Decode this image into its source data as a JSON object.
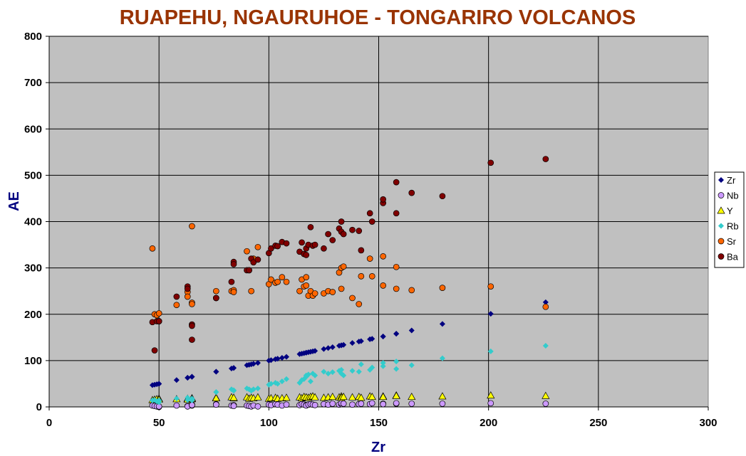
{
  "chart_data": {
    "type": "scatter",
    "title": "RUAPEHU, NGAURUHOE - TONGARIRO VOLCANOS",
    "xlabel": "Zr",
    "ylabel": "AE",
    "xlim": [
      0,
      300
    ],
    "ylim": [
      0,
      800
    ],
    "x_ticks": [
      0,
      50,
      100,
      150,
      200,
      250,
      300
    ],
    "y_ticks": [
      0,
      100,
      200,
      300,
      400,
      500,
      600,
      700,
      800
    ],
    "grid": true,
    "legend_position": "right",
    "plot_background": "#c0c0c0",
    "title_color": "#993300",
    "axis_title_color": "#000080",
    "x": [
      47,
      48,
      49,
      50,
      50,
      58,
      63,
      63,
      65,
      65,
      65,
      76,
      76,
      83,
      84,
      84,
      90,
      91,
      92,
      93,
      95,
      100,
      101,
      103,
      104,
      106,
      108,
      114,
      115,
      116,
      117,
      117,
      118,
      119,
      120,
      121,
      125,
      127,
      129,
      132,
      133,
      133,
      134,
      138,
      141,
      142,
      146,
      147,
      152,
      152,
      158,
      158,
      165,
      179,
      201,
      226
    ],
    "series": [
      {
        "name": "Zr",
        "color": "#000080",
        "marker": "diamond",
        "values": [
          47,
          48,
          49,
          50,
          50,
          58,
          63,
          63,
          65,
          65,
          65,
          76,
          76,
          83,
          84,
          84,
          90,
          91,
          92,
          93,
          95,
          100,
          101,
          103,
          104,
          106,
          108,
          114,
          115,
          116,
          117,
          117,
          118,
          119,
          120,
          121,
          125,
          127,
          129,
          132,
          133,
          133,
          134,
          138,
          141,
          142,
          146,
          147,
          152,
          152,
          158,
          158,
          165,
          179,
          201,
          226
        ]
      },
      {
        "name": "Nb",
        "color": "#cc99ff",
        "marker": "circle",
        "values": [
          3,
          2,
          1,
          0,
          1,
          3,
          2,
          1,
          3,
          5,
          4,
          6,
          5,
          3,
          4,
          2,
          3,
          2,
          1,
          3,
          1,
          5,
          4,
          6,
          5,
          3,
          5,
          4,
          6,
          5,
          4,
          3,
          5,
          6,
          5,
          4,
          6,
          5,
          7,
          5,
          6,
          8,
          7,
          5,
          6,
          7,
          6,
          8,
          7,
          6,
          7,
          8,
          7,
          7,
          8,
          7
        ]
      },
      {
        "name": "Y",
        "color": "#ffff00",
        "marker": "triangle",
        "values": [
          15,
          16,
          17,
          18,
          16,
          17,
          18,
          16,
          17,
          19,
          18,
          20,
          19,
          21,
          19,
          20,
          21,
          18,
          20,
          19,
          21,
          18,
          19,
          20,
          18,
          19,
          20,
          21,
          19,
          22,
          20,
          21,
          20,
          22,
          23,
          21,
          20,
          21,
          22,
          21,
          23,
          20,
          22,
          21,
          22,
          20,
          23,
          22,
          23,
          22,
          25,
          24,
          22,
          23,
          25,
          24
        ]
      },
      {
        "name": "Rb",
        "color": "#33cccc",
        "marker": "diamond",
        "values": [
          14,
          15,
          12,
          10,
          14,
          18,
          20,
          15,
          18,
          14,
          16,
          32,
          32,
          38,
          35,
          36,
          40,
          38,
          35,
          38,
          40,
          48,
          50,
          52,
          50,
          55,
          60,
          52,
          58,
          60,
          65,
          68,
          70,
          55,
          72,
          68,
          76,
          72,
          75,
          78,
          80,
          72,
          68,
          78,
          76,
          92,
          80,
          85,
          95,
          88,
          98,
          82,
          90,
          105,
          120,
          132
        ]
      },
      {
        "name": "Sr",
        "color": "#ff6600",
        "marker": "circle",
        "values": [
          342,
          200,
          198,
          202,
          185,
          220,
          248,
          238,
          225,
          390,
          222,
          250,
          235,
          250,
          252,
          248,
          336,
          295,
          250,
          320,
          345,
          265,
          275,
          268,
          270,
          280,
          270,
          250,
          275,
          260,
          280,
          262,
          240,
          250,
          240,
          245,
          245,
          250,
          248,
          290,
          300,
          255,
          303,
          235,
          222,
          282,
          320,
          282,
          325,
          262,
          302,
          255,
          252,
          257,
          260,
          216
        ]
      },
      {
        "name": "Ba",
        "color": "#800000",
        "marker": "circle",
        "values": [
          183,
          122,
          185,
          185,
          185,
          238,
          260,
          255,
          178,
          145,
          175,
          235,
          235,
          270,
          313,
          308,
          295,
          295,
          320,
          312,
          318,
          332,
          342,
          348,
          347,
          356,
          353,
          335,
          355,
          330,
          328,
          342,
          350,
          388,
          348,
          350,
          342,
          373,
          360,
          385,
          400,
          378,
          373,
          382,
          380,
          338,
          418,
          400,
          440,
          448,
          418,
          485,
          462,
          455,
          527,
          535
        ]
      }
    ]
  }
}
